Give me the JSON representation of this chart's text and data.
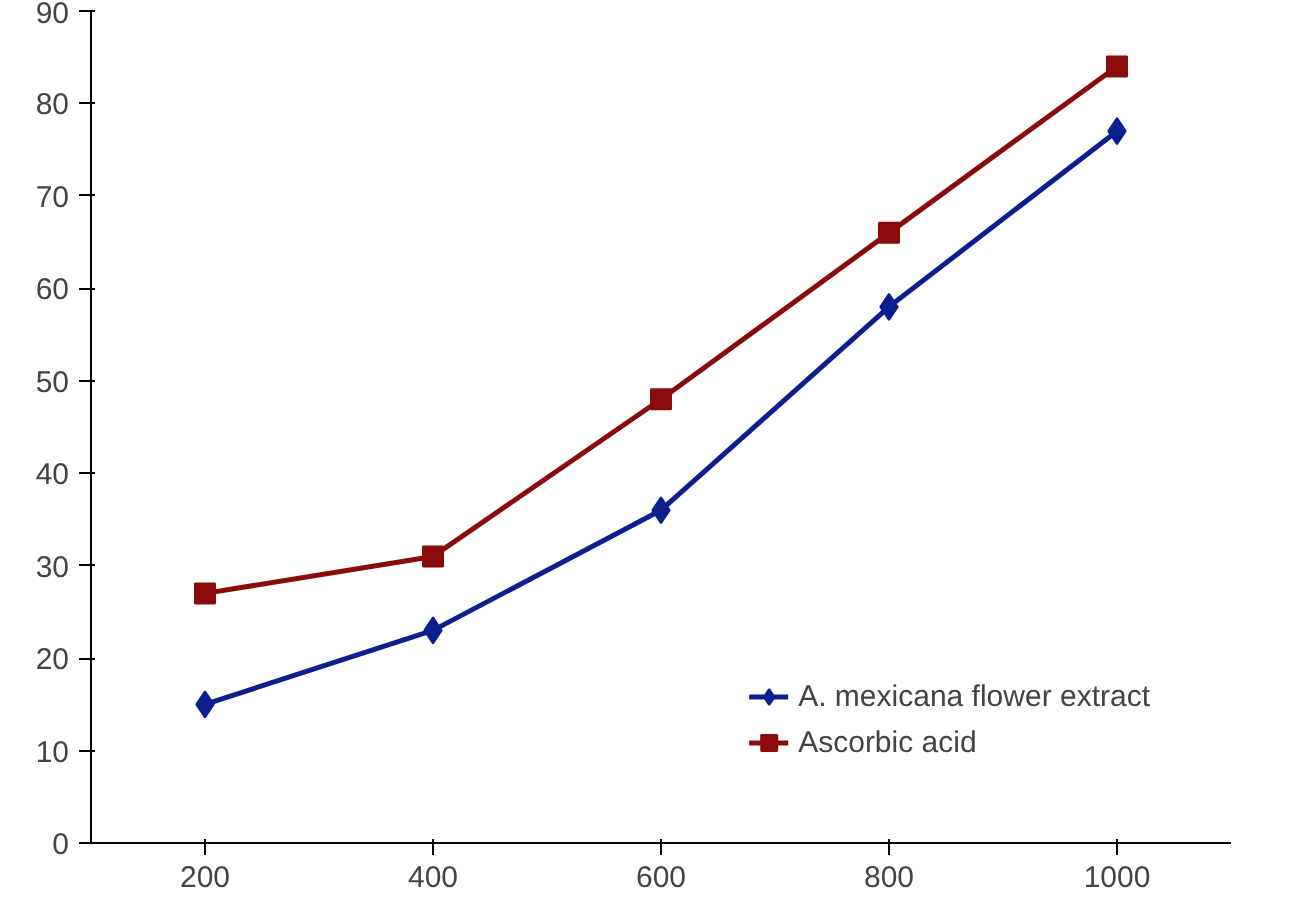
{
  "chart_data": {
    "type": "line",
    "categories": [
      "200",
      "400",
      "600",
      "800",
      "1000"
    ],
    "series": [
      {
        "name": "A. mexicana flower extract",
        "color": "#0b1f8f",
        "values": [
          15,
          23,
          36,
          58,
          77
        ],
        "marker": "diamond"
      },
      {
        "name": "Ascorbic acid",
        "color": "#8b0a0a",
        "values": [
          27,
          31,
          48,
          66,
          84
        ],
        "marker": "square"
      }
    ],
    "ylim": [
      0,
      90
    ],
    "yticks": [
      0,
      10,
      20,
      30,
      40,
      50,
      60,
      70,
      80,
      90
    ],
    "grid": false,
    "legend": "bottom right",
    "line_style": "solid"
  }
}
